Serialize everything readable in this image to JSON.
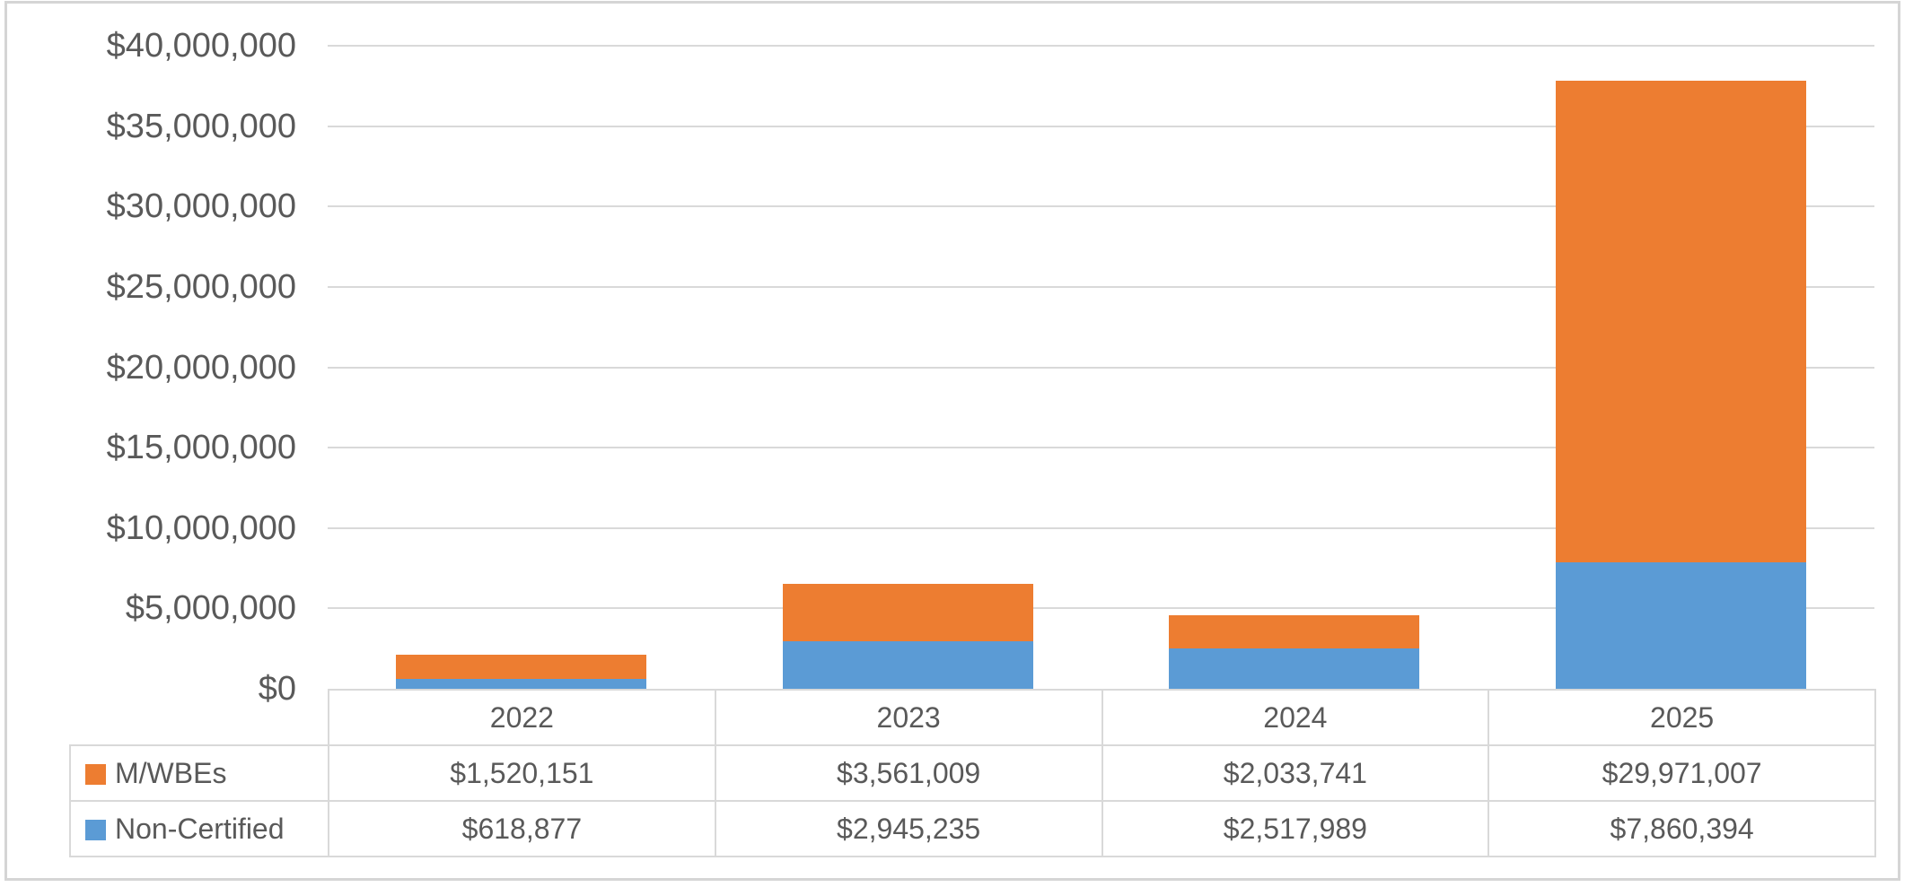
{
  "colors": {
    "mwbe_orange": "#ED7D31",
    "non_certified_blue": "#5B9BD5",
    "gridline_gray": "#D9D9D9",
    "table_border_gray": "#D9D9D9",
    "text_gray": "#595959",
    "frame_gray": "#D5D5D5",
    "background": "#FFFFFF"
  },
  "chart_data": {
    "type": "bar",
    "stacked": true,
    "title": "",
    "xlabel": "",
    "ylabel": "",
    "grid": true,
    "legend_position": "data-table-left",
    "categories": [
      "2022",
      "2023",
      "2024",
      "2025"
    ],
    "series": [
      {
        "name": "M/WBEs",
        "color": "#ED7D31",
        "stack_position": "top",
        "values": [
          1520151,
          3561009,
          2033741,
          29971007
        ],
        "value_labels": [
          "$1,520,151",
          "$3,561,009",
          "$2,033,741",
          "$29,971,007"
        ]
      },
      {
        "name": "Non-Certified",
        "color": "#5B9BD5",
        "stack_position": "bottom",
        "values": [
          618877,
          2945235,
          2517989,
          7860394
        ],
        "value_labels": [
          "$618,877",
          "$2,945,235",
          "$2,517,989",
          "$7,860,394"
        ]
      }
    ],
    "y_axis": {
      "min": 0,
      "max": 40000000,
      "step": 5000000,
      "tick_labels": [
        "$40,000,000",
        "$35,000,000",
        "$30,000,000",
        "$25,000,000",
        "$20,000,000",
        "$15,000,000",
        "$10,000,000",
        "$5,000,000",
        "$0"
      ],
      "tick_values": [
        40000000,
        35000000,
        30000000,
        25000000,
        20000000,
        15000000,
        10000000,
        5000000,
        0
      ]
    }
  }
}
